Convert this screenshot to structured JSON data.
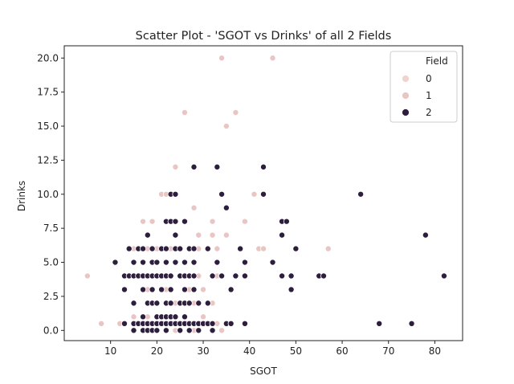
{
  "chart_data": {
    "type": "scatter",
    "title": "Scatter Plot - 'SGOT vs Drinks' of all 2 Fields",
    "xlabel": "SGOT",
    "ylabel": "Drinks",
    "xlim": [
      0,
      86
    ],
    "ylim": [
      -0.75,
      20.9
    ],
    "xticks": [
      10,
      20,
      30,
      40,
      50,
      60,
      70,
      80
    ],
    "yticks": [
      0.0,
      2.5,
      5.0,
      7.5,
      10.0,
      12.5,
      15.0,
      17.5,
      20.0
    ],
    "ytick_labels": [
      "0.0",
      "2.5",
      "5.0",
      "7.5",
      "10.0",
      "12.5",
      "15.0",
      "17.5",
      "20.0"
    ],
    "legend": {
      "title": "Field",
      "position": "top-right"
    },
    "series": [
      {
        "name": "0",
        "color": "#efd3cc",
        "points": []
      },
      {
        "name": "1",
        "color": "#e9c6c3",
        "points": [
          [
            34,
            20
          ],
          [
            45,
            20
          ],
          [
            37,
            16
          ],
          [
            26,
            16
          ],
          [
            35,
            15
          ],
          [
            24,
            12
          ],
          [
            28,
            9
          ],
          [
            21,
            10
          ],
          [
            22,
            10
          ],
          [
            41,
            10
          ],
          [
            17,
            8
          ],
          [
            19,
            8
          ],
          [
            24,
            8
          ],
          [
            32,
            8
          ],
          [
            39,
            8
          ],
          [
            35,
            7
          ],
          [
            32,
            7
          ],
          [
            29,
            7
          ],
          [
            15,
            6
          ],
          [
            18,
            6
          ],
          [
            20,
            6
          ],
          [
            23,
            6
          ],
          [
            29,
            6
          ],
          [
            33,
            6
          ],
          [
            42,
            6
          ],
          [
            43,
            6
          ],
          [
            57,
            6
          ],
          [
            5,
            4
          ],
          [
            14,
            4
          ],
          [
            19,
            4
          ],
          [
            25,
            4
          ],
          [
            29,
            4
          ],
          [
            33,
            4
          ],
          [
            13,
            3
          ],
          [
            18,
            3
          ],
          [
            22,
            3
          ],
          [
            27,
            3
          ],
          [
            30,
            3
          ],
          [
            15,
            2
          ],
          [
            19,
            2
          ],
          [
            24,
            2
          ],
          [
            28,
            2
          ],
          [
            32,
            2
          ],
          [
            15,
            1
          ],
          [
            18,
            1
          ],
          [
            26,
            1
          ],
          [
            30,
            1
          ],
          [
            8,
            0.5
          ],
          [
            12,
            0.5
          ],
          [
            16,
            0.5
          ],
          [
            21,
            0.5
          ],
          [
            27,
            0.5
          ],
          [
            33,
            0.5
          ],
          [
            17,
            0
          ],
          [
            24,
            0
          ],
          [
            28,
            0
          ],
          [
            34,
            0
          ]
        ]
      },
      {
        "name": "2",
        "color": "#2d1e3e",
        "points": [
          [
            28,
            12
          ],
          [
            33,
            12
          ],
          [
            43,
            12
          ],
          [
            23,
            10
          ],
          [
            24,
            10
          ],
          [
            34,
            10
          ],
          [
            43,
            10
          ],
          [
            64,
            10
          ],
          [
            35,
            9
          ],
          [
            22,
            8
          ],
          [
            23,
            8
          ],
          [
            24,
            8
          ],
          [
            26,
            8
          ],
          [
            47,
            8
          ],
          [
            48,
            8
          ],
          [
            18,
            7
          ],
          [
            24,
            7
          ],
          [
            47,
            7
          ],
          [
            78,
            7
          ],
          [
            14,
            6
          ],
          [
            16,
            6
          ],
          [
            17,
            6
          ],
          [
            19,
            6
          ],
          [
            21,
            6
          ],
          [
            22,
            6
          ],
          [
            24,
            6
          ],
          [
            25,
            6
          ],
          [
            27,
            6
          ],
          [
            28,
            6
          ],
          [
            31,
            6
          ],
          [
            38,
            6
          ],
          [
            50,
            6
          ],
          [
            11,
            5
          ],
          [
            15,
            5
          ],
          [
            17,
            5
          ],
          [
            19,
            5
          ],
          [
            20,
            5
          ],
          [
            22,
            5
          ],
          [
            24,
            5
          ],
          [
            26,
            5
          ],
          [
            28,
            5
          ],
          [
            33,
            5
          ],
          [
            39,
            5
          ],
          [
            45,
            5
          ],
          [
            13,
            4
          ],
          [
            14,
            4
          ],
          [
            15,
            4
          ],
          [
            16,
            4
          ],
          [
            17,
            4
          ],
          [
            18,
            4
          ],
          [
            19,
            4
          ],
          [
            20,
            4
          ],
          [
            21,
            4
          ],
          [
            22,
            4
          ],
          [
            23,
            4
          ],
          [
            25,
            4
          ],
          [
            26,
            4
          ],
          [
            27,
            4
          ],
          [
            28,
            4
          ],
          [
            32,
            4
          ],
          [
            34,
            4
          ],
          [
            37,
            4
          ],
          [
            39,
            4
          ],
          [
            47,
            4
          ],
          [
            49,
            4
          ],
          [
            55,
            4
          ],
          [
            56,
            4
          ],
          [
            82,
            4
          ],
          [
            13,
            3
          ],
          [
            17,
            3
          ],
          [
            19,
            3
          ],
          [
            21,
            3
          ],
          [
            23,
            3
          ],
          [
            26,
            3
          ],
          [
            28,
            3
          ],
          [
            36,
            3
          ],
          [
            49,
            3
          ],
          [
            15,
            2
          ],
          [
            18,
            2
          ],
          [
            19,
            2
          ],
          [
            20,
            2
          ],
          [
            22,
            2
          ],
          [
            23,
            2
          ],
          [
            25,
            2
          ],
          [
            26,
            2
          ],
          [
            27,
            2
          ],
          [
            29,
            2
          ],
          [
            31,
            2
          ],
          [
            17,
            1
          ],
          [
            20,
            1
          ],
          [
            21,
            1
          ],
          [
            22,
            1
          ],
          [
            23,
            1
          ],
          [
            24,
            1
          ],
          [
            26,
            1
          ],
          [
            13,
            0.5
          ],
          [
            15,
            0.5
          ],
          [
            16,
            0.5
          ],
          [
            17,
            0.5
          ],
          [
            18,
            0.5
          ],
          [
            19,
            0.5
          ],
          [
            20,
            0.5
          ],
          [
            21,
            0.5
          ],
          [
            22,
            0.5
          ],
          [
            23,
            0.5
          ],
          [
            24,
            0.5
          ],
          [
            25,
            0.5
          ],
          [
            26,
            0.5
          ],
          [
            27,
            0.5
          ],
          [
            28,
            0.5
          ],
          [
            29,
            0.5
          ],
          [
            30,
            0.5
          ],
          [
            31,
            0.5
          ],
          [
            32,
            0.5
          ],
          [
            35,
            0.5
          ],
          [
            36,
            0.5
          ],
          [
            39,
            0.5
          ],
          [
            68,
            0.5
          ],
          [
            75,
            0.5
          ],
          [
            15,
            0
          ],
          [
            17,
            0
          ],
          [
            18,
            0
          ],
          [
            19,
            0
          ],
          [
            20,
            0
          ],
          [
            22,
            0
          ],
          [
            25,
            0
          ],
          [
            27,
            0
          ],
          [
            29,
            0
          ],
          [
            32,
            0
          ]
        ]
      }
    ]
  }
}
